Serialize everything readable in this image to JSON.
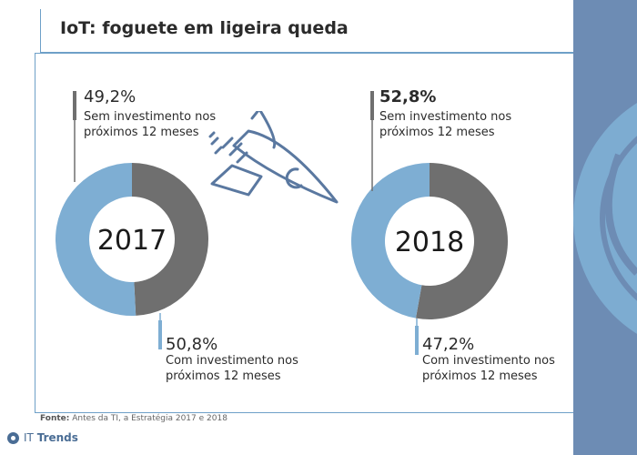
{
  "title": "IoT: foguete em ligeira queda",
  "source": {
    "label": "Fonte:",
    "text": "Antes da TI, a Estratégia 2017 e 2018"
  },
  "logo": {
    "it": "IT",
    "trends": "Trends"
  },
  "colors": {
    "grey": "#6f6f6f",
    "blue": "#7eaed3",
    "accent": "#6ea0c8",
    "sidebar": "#6d8cb4"
  },
  "icons": {
    "rocket": "rocket-icon",
    "logo": "it-trends-logo-icon"
  },
  "chart_data": [
    {
      "type": "pie",
      "center_label": "2017",
      "slices": [
        {
          "value": 49.2,
          "value_label": "49,2%",
          "line1": "Sem investimento nos",
          "line2": "próximos 12 meses",
          "color": "#6f6f6f",
          "emphasis": false
        },
        {
          "value": 50.8,
          "value_label": "50,8%",
          "line1": "Com investimento nos",
          "line2": "próximos 12 meses",
          "color": "#7eaed3",
          "emphasis": false
        }
      ]
    },
    {
      "type": "pie",
      "center_label": "2018",
      "slices": [
        {
          "value": 52.8,
          "value_label": "52,8%",
          "line1": "Sem investimento nos",
          "line2": "próximos 12 meses",
          "color": "#6f6f6f",
          "emphasis": true
        },
        {
          "value": 47.2,
          "value_label": "47,2%",
          "line1": "Com investimento nos",
          "line2": "próximos 12 meses",
          "color": "#7eaed3",
          "emphasis": false
        }
      ]
    }
  ]
}
